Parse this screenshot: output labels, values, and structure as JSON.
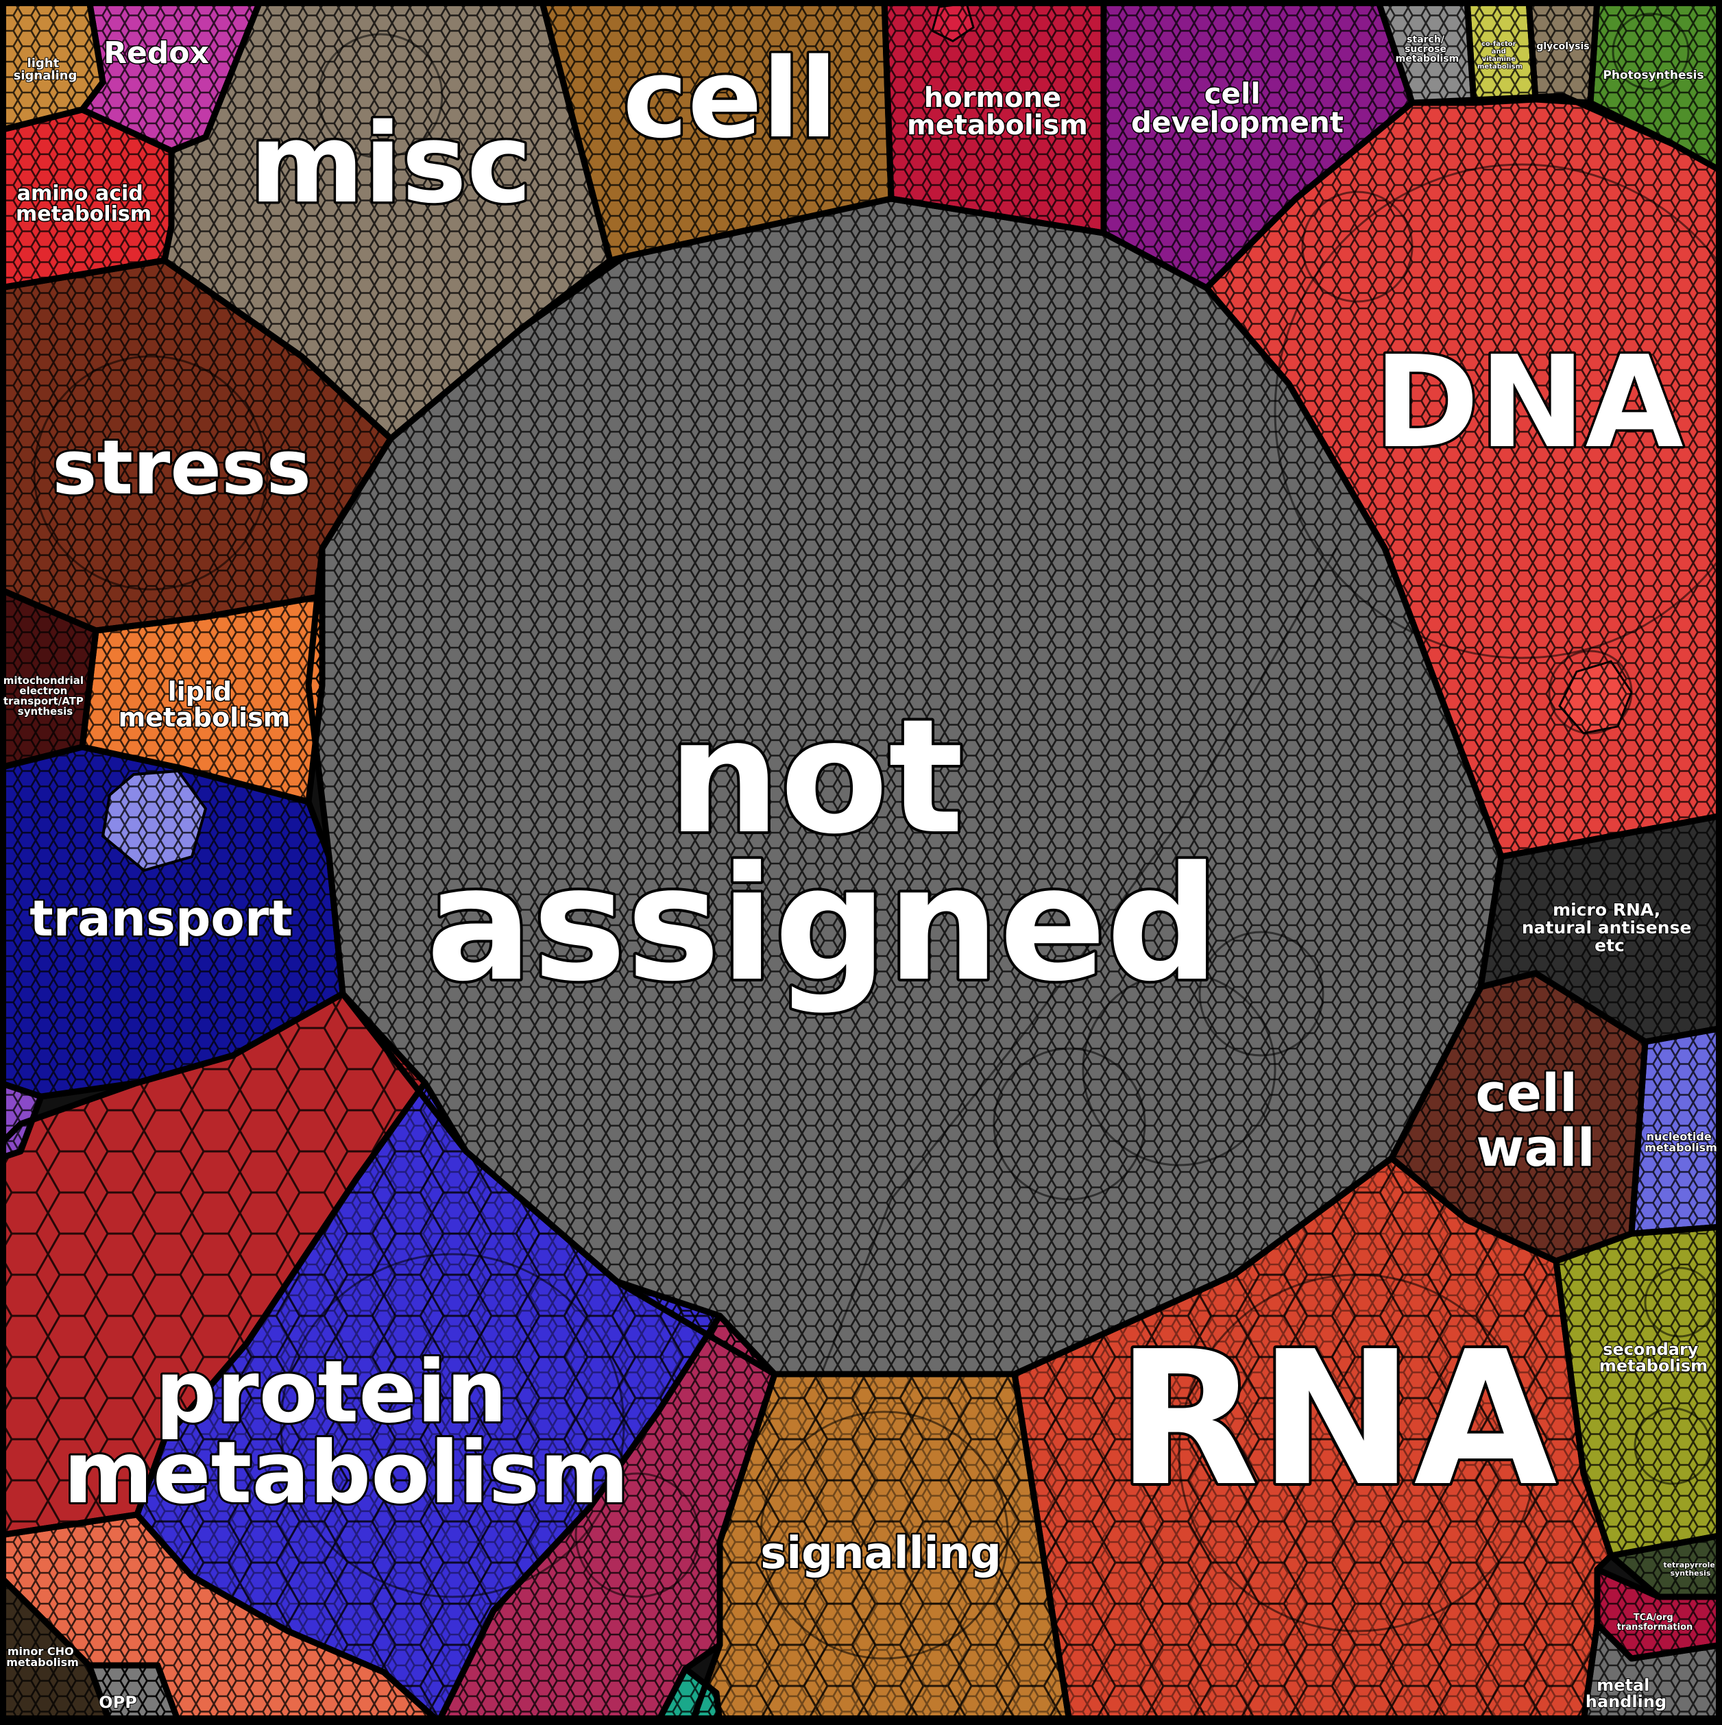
{
  "diagram": {
    "type": "voronoi-treemap",
    "categories": [
      {
        "id": "not-assigned",
        "label_lines": [
          "not",
          "assigned"
        ],
        "color": "#6b6b6b"
      },
      {
        "id": "dna",
        "label_lines": [
          "DNA"
        ],
        "color": "#e3403c"
      },
      {
        "id": "rna",
        "label_lines": [
          "RNA"
        ],
        "color": "#d8452e"
      },
      {
        "id": "protein-metabolism",
        "label_lines": [
          "protein",
          "metabolism"
        ],
        "color": "#3a2fd6"
      },
      {
        "id": "misc",
        "label_lines": [
          "misc"
        ],
        "color": "#8b7d6b"
      },
      {
        "id": "cell",
        "label_lines": [
          "cell"
        ],
        "color": "#a06a28"
      },
      {
        "id": "stress",
        "label_lines": [
          "stress"
        ],
        "color": "#7a2e1a"
      },
      {
        "id": "transport",
        "label_lines": [
          "transport"
        ],
        "color": "#12129a"
      },
      {
        "id": "signalling",
        "label_lines": [
          "signalling"
        ],
        "color": "#c07a2e"
      },
      {
        "id": "hormone-metabolism",
        "label_lines": [
          "hormone",
          "metabolism"
        ],
        "color": "#c0173a"
      },
      {
        "id": "cell-development",
        "label_lines": [
          "cell",
          "development"
        ],
        "color": "#8a1a8a"
      },
      {
        "id": "cell-wall",
        "label_lines": [
          "cell",
          "wall"
        ],
        "color": "#6a2e22"
      },
      {
        "id": "micro-rna",
        "label_lines": [
          "micro RNA,",
          "natural antisense",
          "etc"
        ],
        "color": "#2e2e2e"
      },
      {
        "id": "lipid-metabolism",
        "label_lines": [
          "lipid",
          "metabolism"
        ],
        "color": "#ef7a32"
      },
      {
        "id": "amino-acid-metabolism",
        "label_lines": [
          "amino acid",
          "metabolism"
        ],
        "color": "#e2282e"
      },
      {
        "id": "redox",
        "label_lines": [
          "Redox"
        ],
        "color": "#c23aa8"
      },
      {
        "id": "light-signaling",
        "label_lines": [
          "light",
          "signaling"
        ],
        "color": "#c98a3a"
      },
      {
        "id": "mitochondrial-electron-transport",
        "label_lines": [
          "mitochondrial",
          "electron",
          "transport/ATP",
          "synthesis"
        ],
        "color": "#4a1010"
      },
      {
        "id": "secondary-metabolism",
        "label_lines": [
          "secondary",
          "metabolism"
        ],
        "color": "#9aa024"
      },
      {
        "id": "nucleotide-metabolism",
        "label_lines": [
          "nucleotide",
          "metabolism"
        ],
        "color": "#6a6ae0"
      },
      {
        "id": "photosynthesis",
        "label_lines": [
          "Photosynthesis"
        ],
        "color": "#4f8f2a"
      },
      {
        "id": "glycolysis",
        "label_lines": [
          "glycolysis"
        ],
        "color": "#8a7a60"
      },
      {
        "id": "starch-sucrose-metabolism",
        "label_lines": [
          "starch/",
          "sucrose",
          "metabolism"
        ],
        "color": "#8c8c8c"
      },
      {
        "id": "co-factor-vitamine-metabolism",
        "label_lines": [
          "co-factor",
          "and",
          "vitamine",
          "metabolism"
        ],
        "color": "#c8c84a"
      },
      {
        "id": "tetrapyrrole-synthesis",
        "label_lines": [
          "tetrapyrrole",
          "synthesis"
        ],
        "color": "#3a4a2a"
      },
      {
        "id": "tca-org-transformation",
        "label_lines": [
          "TCA/org",
          "transformation"
        ],
        "color": "#b0123e"
      },
      {
        "id": "metal-handling",
        "label_lines": [
          "metal",
          "handling"
        ],
        "color": "#6e6e6e"
      },
      {
        "id": "minor-cho-metabolism",
        "label_lines": [
          "minor CHO",
          "metabolism"
        ],
        "color": "#3a2c1c"
      },
      {
        "id": "opp",
        "label_lines": [
          "OPP"
        ],
        "color": "#7a7a7a"
      },
      {
        "id": "unlabeled-red",
        "label_lines": [],
        "color": "#b8262a"
      },
      {
        "id": "unlabeled-pink",
        "label_lines": [],
        "color": "#b02a5a"
      },
      {
        "id": "unlabeled-salmon",
        "label_lines": [],
        "color": "#e86a4a"
      },
      {
        "id": "unlabeled-teal",
        "label_lines": [],
        "color": "#1aa88a"
      },
      {
        "id": "unlabeled-purple",
        "label_lines": [],
        "color": "#8a4ac8"
      }
    ]
  }
}
